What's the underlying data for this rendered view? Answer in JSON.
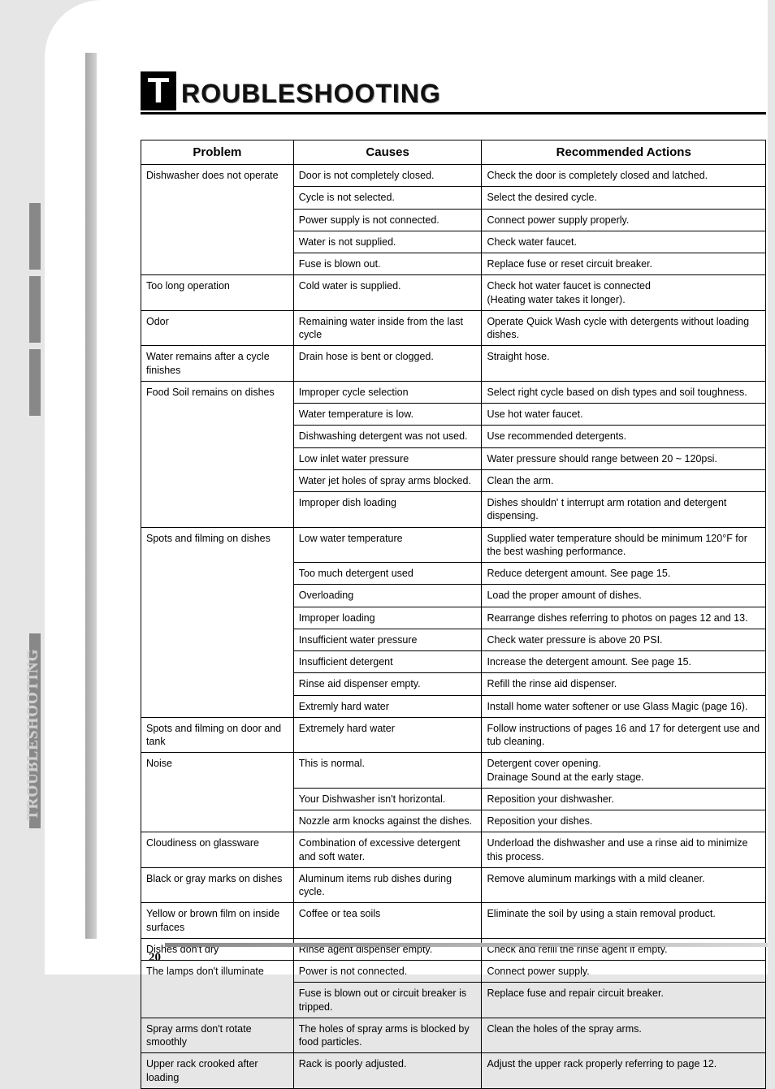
{
  "side_label": "TROUBLESHOOTING",
  "heading_first": "T",
  "heading_rest": "ROUBLESHOOTING",
  "page_number": "20",
  "table": {
    "headers": [
      "Problem",
      "Causes",
      "Recommended Actions"
    ],
    "groups": [
      {
        "problem": "Dishwasher does not operate",
        "rows": [
          [
            "Door is not completely closed.",
            "Check the door is completely closed and latched."
          ],
          [
            "Cycle is not selected.",
            "Select the desired cycle."
          ],
          [
            "Power supply is not connected.",
            "Connect power supply properly."
          ],
          [
            "Water is not supplied.",
            "Check water faucet."
          ],
          [
            "Fuse is blown out.",
            "Replace fuse or reset circuit breaker."
          ]
        ]
      },
      {
        "problem": "Too long operation",
        "rows": [
          [
            "Cold water is supplied.",
            "Check hot water faucet is connected\n(Heating water takes it longer)."
          ]
        ]
      },
      {
        "problem": "Odor",
        "rows": [
          [
            "Remaining water inside from the last cycle",
            "Operate Quick Wash cycle with detergents without loading dishes."
          ]
        ]
      },
      {
        "problem": "Water remains after a cycle finishes",
        "rows": [
          [
            "Drain hose is bent or clogged.",
            "Straight hose."
          ]
        ]
      },
      {
        "problem": "Food Soil remains on dishes",
        "rows": [
          [
            "Improper cycle selection",
            "Select right cycle based on dish types and soil toughness."
          ],
          [
            "Water temperature is low.",
            "Use hot water faucet."
          ],
          [
            "Dishwashing detergent was not used.",
            "Use recommended detergents."
          ],
          [
            "Low inlet water pressure",
            "Water pressure should range between 20 ~ 120psi."
          ],
          [
            "Water jet holes of spray arms blocked.",
            "Clean the arm."
          ],
          [
            "Improper dish loading",
            "Dishes shouldn' t interrupt arm rotation and detergent dispensing."
          ]
        ]
      },
      {
        "problem": "Spots and filming on dishes",
        "rows": [
          [
            "Low water temperature",
            "Supplied water temperature should be minimum 120°F for the best washing performance."
          ],
          [
            "Too much detergent used",
            "Reduce detergent amount.  See page 15."
          ],
          [
            "Overloading",
            "Load the proper amount of dishes."
          ],
          [
            "Improper loading",
            "Rearrange dishes referring to photos on pages 12 and 13."
          ],
          [
            "Insufficient water pressure",
            "Check water pressure is above 20 PSI."
          ],
          [
            "Insufficient detergent",
            "Increase the detergent amount.  See page 15."
          ],
          [
            "Rinse aid dispenser empty.",
            "Refill the rinse aid dispenser."
          ],
          [
            "Extremly hard water",
            "Install home water softener or use Glass Magic (page 16)."
          ]
        ]
      },
      {
        "problem": "Spots and filming on door and tank",
        "rows": [
          [
            "Extremely hard water",
            "Follow instructions of pages 16 and 17 for detergent use and tub cleaning."
          ]
        ]
      },
      {
        "problem": "Noise",
        "rows": [
          [
            "This is normal.",
            "Detergent cover opening.\nDrainage Sound at the early stage."
          ],
          [
            "Your Dishwasher isn't horizontal.",
            "Reposition your dishwasher."
          ],
          [
            "Nozzle arm knocks against the dishes.",
            "Reposition your dishes."
          ]
        ]
      },
      {
        "problem": "Cloudiness on glassware",
        "rows": [
          [
            "Combination of excessive detergent and soft water.",
            "Underload the dishwasher and use a rinse aid to minimize this process."
          ]
        ]
      },
      {
        "problem": "Black or gray marks on dishes",
        "rows": [
          [
            "Aluminum items rub dishes during cycle.",
            "Remove aluminum markings with a mild cleaner."
          ]
        ]
      },
      {
        "problem": "Yellow or brown film on inside surfaces",
        "rows": [
          [
            "Coffee or tea soils",
            "Eliminate the soil by using a stain removal product."
          ]
        ]
      },
      {
        "problem": "Dishes don't dry",
        "rows": [
          [
            "Rinse agent dispenser empty.",
            "Check and refill the rinse agent if empty."
          ]
        ]
      },
      {
        "problem": "The lamps don't illuminate",
        "rows": [
          [
            "Power is not connected.",
            "Connect power supply."
          ],
          [
            "Fuse is blown out or circuit breaker is tripped.",
            "Replace fuse and repair circuit breaker."
          ]
        ]
      },
      {
        "problem": "Spray arms don't rotate smoothly",
        "rows": [
          [
            "The holes of spray arms is blocked by food particles.",
            "Clean the holes of the spray arms."
          ]
        ]
      },
      {
        "problem": "Upper rack crooked after loading",
        "rows": [
          [
            "Rack is poorly adjusted.",
            "Adjust the upper rack properly referring to page 12."
          ]
        ]
      }
    ]
  }
}
